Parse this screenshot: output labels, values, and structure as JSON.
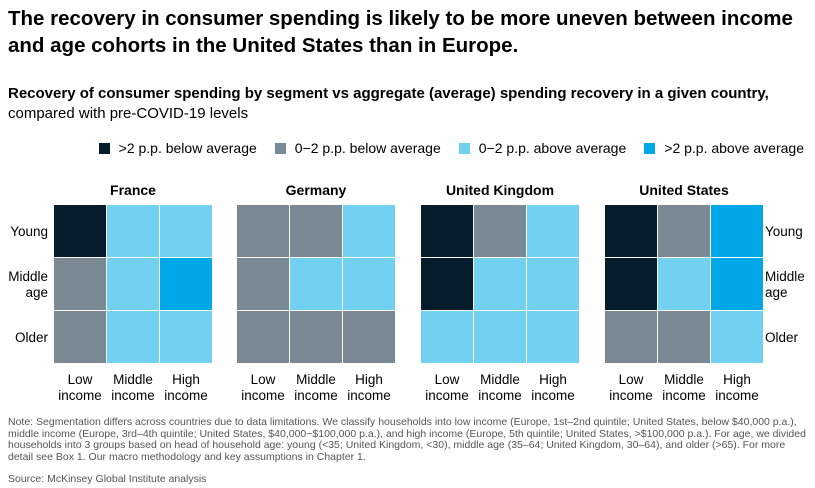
{
  "title": "The recovery in consumer spending is likely to be more uneven between income and age cohorts in the United States than in Europe.",
  "subtitle_bold": "Recovery of consumer spending by segment vs aggregate (average) spending recovery in a given country,",
  "subtitle_rest": " compared with pre-COVID-19 levels",
  "legend": [
    {
      "label": ">2 p.p. below average",
      "color": "#051c2c"
    },
    {
      "label": "0−2 p.p. below average",
      "color": "#7a8a94"
    },
    {
      "label": "0−2 p.p. above average",
      "color": "#72d1f0"
    },
    {
      "label": ">2 p.p. above average",
      "color": "#00a8e8"
    }
  ],
  "note": "Note: Segmentation differs across countries due to data limitations. We classify households into low income (Europe, 1st–2nd quintile; United States, below $40,000 p.a.), middle income (Europe, 3rd–4th quintile; United States, $40,000−$100,000 p.a.), and high income (Europe, 5th quintile; United States, >$100,000 p.a.). For age, we divided households into 3 groups based on head of household age: young (<35; United Kingdom, <30), middle age (35–64; United Kingdom, 30–64), and older (>65). For more detail see Box 1. Our macro methodology and key assumptions in Chapter 1.",
  "source": "Source: McKinsey Global Institute analysis",
  "chart_data": {
    "type": "heatmap",
    "value_scale": {
      "-2": ">2 p.p. below average",
      "-1": "0−2 p.p. below average",
      "1": "0−2 p.p. above average",
      "2": ">2 p.p. above average"
    },
    "rows": [
      "Young",
      "Middle age",
      "Older"
    ],
    "columns": [
      "Low income",
      "Middle income",
      "High income"
    ],
    "panels": [
      {
        "country": "France",
        "grid": [
          [
            -2,
            1,
            1
          ],
          [
            -1,
            1,
            2
          ],
          [
            -1,
            1,
            1
          ]
        ]
      },
      {
        "country": "Germany",
        "grid": [
          [
            -1,
            -1,
            1
          ],
          [
            -1,
            1,
            1
          ],
          [
            -1,
            -1,
            -1
          ]
        ]
      },
      {
        "country": "United Kingdom",
        "grid": [
          [
            -2,
            -1,
            1
          ],
          [
            -2,
            1,
            1
          ],
          [
            1,
            1,
            1
          ]
        ]
      },
      {
        "country": "United States",
        "grid": [
          [
            -2,
            -1,
            2
          ],
          [
            -2,
            1,
            2
          ],
          [
            -1,
            -1,
            1
          ]
        ]
      }
    ]
  }
}
